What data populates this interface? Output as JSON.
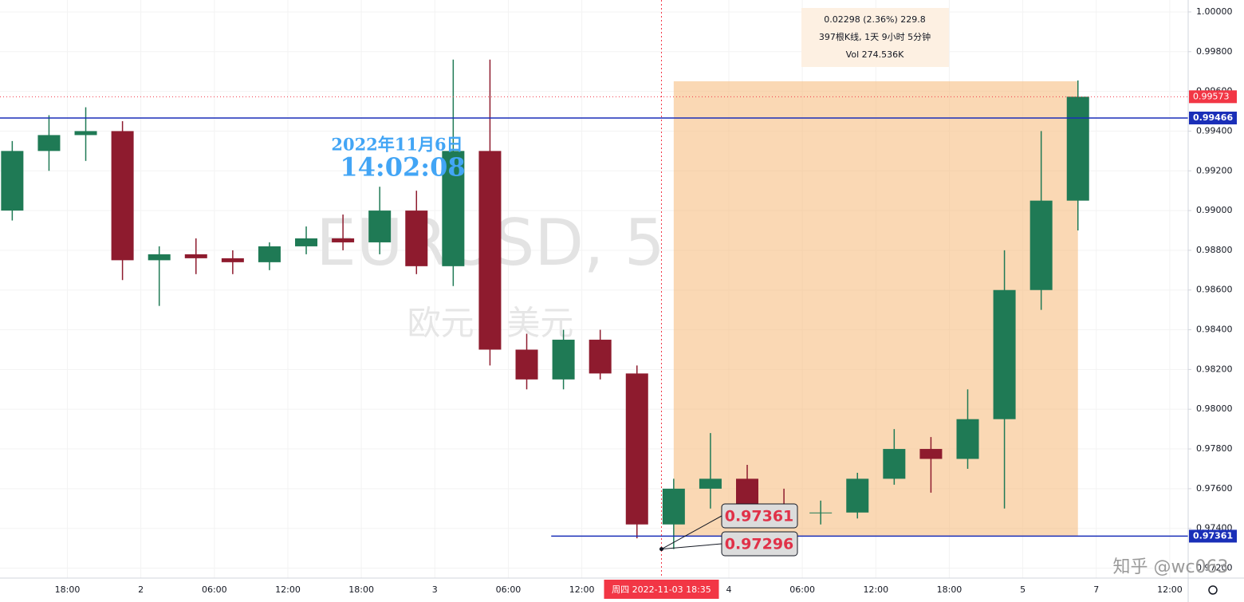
{
  "chart_data": {
    "type": "candlestick",
    "title": "EURUSD, 5",
    "subtitle": "欧元 / 美元",
    "x": [
      -10.5,
      -7.5,
      -4.5,
      -1.5,
      1.5,
      4.5,
      7.5,
      10.5,
      13.5,
      16.5,
      19.5,
      22.5,
      25.5,
      28.5,
      31.5,
      34.5,
      37.5,
      40.5,
      43.5,
      46.5,
      49.5,
      52.5,
      55.5,
      58.5,
      61.5,
      64.5,
      67.5,
      70.5,
      73.5,
      76.5
    ],
    "open": [
      0.99,
      0.993,
      0.9938,
      0.994,
      0.9875,
      0.9878,
      0.9876,
      0.9874,
      0.9882,
      0.9886,
      0.9884,
      0.99,
      0.9872,
      0.993,
      0.983,
      0.9815,
      0.9835,
      0.9818,
      0.9742,
      0.976,
      0.9765,
      0.975,
      0.9748,
      0.9748,
      0.9765,
      0.978,
      0.9775,
      0.9795,
      0.986,
      0.9905
    ],
    "high": [
      0.9935,
      0.9948,
      0.9952,
      0.9945,
      0.9882,
      0.9886,
      0.988,
      0.9884,
      0.9892,
      0.9898,
      0.9912,
      0.991,
      0.9976,
      0.9976,
      0.9838,
      0.984,
      0.984,
      0.9822,
      0.9765,
      0.9788,
      0.9772,
      0.976,
      0.9754,
      0.9768,
      0.979,
      0.9786,
      0.981,
      0.988,
      0.994,
      0.99655
    ],
    "low": [
      0.9895,
      0.992,
      0.9925,
      0.9865,
      0.9852,
      0.9868,
      0.9868,
      0.987,
      0.9878,
      0.988,
      0.9878,
      0.9868,
      0.9862,
      0.9822,
      0.981,
      0.981,
      0.9815,
      0.9735,
      0.97296,
      0.975,
      0.9745,
      0.9744,
      0.9742,
      0.9745,
      0.9762,
      0.9758,
      0.977,
      0.975,
      0.985,
      0.989
    ],
    "close": [
      0.993,
      0.9938,
      0.994,
      0.9875,
      0.9878,
      0.9876,
      0.9874,
      0.9882,
      0.9886,
      0.9884,
      0.99,
      0.9872,
      0.993,
      0.983,
      0.9815,
      0.9835,
      0.9818,
      0.9742,
      0.976,
      0.9765,
      0.975,
      0.9748,
      0.9748,
      0.9765,
      0.978,
      0.9775,
      0.9795,
      0.986,
      0.9905,
      0.99573
    ],
    "up_color": "#1f7a55",
    "down_color": "#8e1b2e",
    "xlim": [
      -11.5,
      85.5
    ],
    "xticks": [
      {
        "value": -6,
        "label": "18:00"
      },
      {
        "value": 0,
        "label": "2"
      },
      {
        "value": 6,
        "label": "06:00"
      },
      {
        "value": 12,
        "label": "12:00"
      },
      {
        "value": 18,
        "label": "18:00"
      },
      {
        "value": 24,
        "label": "3"
      },
      {
        "value": 30,
        "label": "06:00"
      },
      {
        "value": 36,
        "label": "12:00"
      },
      {
        "value": 48,
        "label": "4"
      },
      {
        "value": 54,
        "label": "06:00"
      },
      {
        "value": 60,
        "label": "12:00"
      },
      {
        "value": 66,
        "label": "18:00"
      },
      {
        "value": 72,
        "label": "5"
      },
      {
        "value": 78,
        "label": "7"
      },
      {
        "value": 84,
        "label": "12:00"
      }
    ],
    "ylim": [
      0.9715,
      1.0006
    ],
    "yticks": [
      {
        "value": 0.972,
        "label": "0.97200"
      },
      {
        "value": 0.974,
        "label": "0.97400"
      },
      {
        "value": 0.976,
        "label": "0.97600"
      },
      {
        "value": 0.978,
        "label": "0.97800"
      },
      {
        "value": 0.98,
        "label": "0.98000"
      },
      {
        "value": 0.982,
        "label": "0.98200"
      },
      {
        "value": 0.984,
        "label": "0.98400"
      },
      {
        "value": 0.986,
        "label": "0.98600"
      },
      {
        "value": 0.988,
        "label": "0.98800"
      },
      {
        "value": 0.99,
        "label": "0.99000"
      },
      {
        "value": 0.992,
        "label": "0.99200"
      },
      {
        "value": 0.994,
        "label": "0.99400"
      },
      {
        "value": 0.996,
        "label": "0.99600"
      },
      {
        "value": 0.998,
        "label": "0.99800"
      },
      {
        "value": 1.0,
        "label": "1.00000"
      }
    ],
    "grid": true,
    "hlines": [
      {
        "value": 0.99466,
        "from": -11.5
      },
      {
        "value": 0.97361,
        "from": 33.5
      }
    ],
    "hline_color": "#1a2fb8",
    "last_price": 0.99573,
    "last_price_color": "#f23645",
    "range_box": {
      "x": [
        43.5,
        76.5
      ],
      "y": [
        0.97361,
        0.99651
      ],
      "color": "#f5b877"
    },
    "range_info": [
      "0.02298 (2.36%) 229.8",
      "397根K线, 1天 9小时 5分钟",
      "Vol 274.536K"
    ],
    "crosshair": {
      "x": 42.5,
      "y": 0.97296,
      "label": "周四 2022-11-03  18:35"
    },
    "price_callouts": [
      0.97361,
      0.97296
    ]
  },
  "overlay": {
    "date": "2022年11月6日",
    "time": "14:02:08",
    "footer": "知乎 @wc063"
  }
}
